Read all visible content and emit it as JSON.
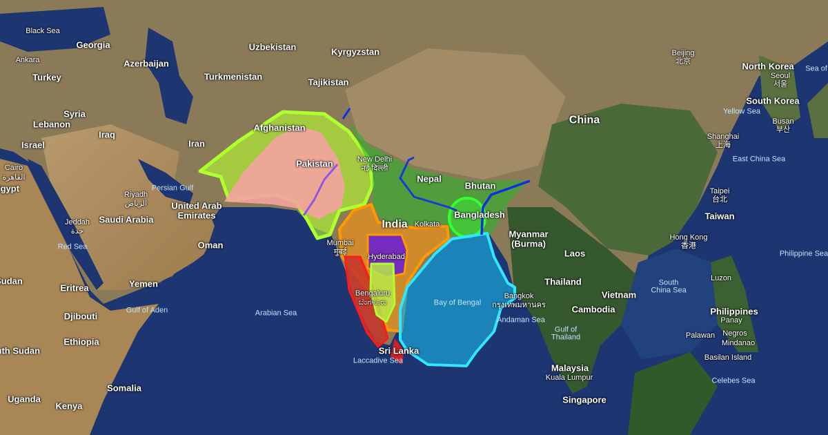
{
  "map": {
    "type": "satellite",
    "colors": {
      "ocean": "#1d3570",
      "region_afghanistan_pakistan": "#b5ff2e",
      "region_pakistan": "#f4a3a0",
      "region_north_india": "#2db32d",
      "region_bangladesh": "#33ff33",
      "region_deccan": "#e5901e",
      "region_hyderabad": "#6a1fd0",
      "region_karnataka": "#b8e84a",
      "region_west_coast": "#c8322a",
      "region_sri_lanka": "#e02020",
      "region_bay_of_bengal": "#1a9fd0",
      "bay_outline": "#33e6ff",
      "rivers": "#1030e0"
    }
  },
  "labels": {
    "black_sea": "Black Sea",
    "georgia": "Georgia",
    "ankara": "Ankara",
    "turkey": "Turkey",
    "azerbaijan": "Azerbaijan",
    "uzbekistan": "Uzbekistan",
    "kyrgyzstan": "Kyrgyzstan",
    "turkmenistan": "Turkmenistan",
    "tajikistan": "Tajikistan",
    "syria": "Syria",
    "lebanon": "Lebanon",
    "iraq": "Iraq",
    "israel": "Israel",
    "iran": "Iran",
    "cairo": "Cairo",
    "cairo_ar": "القاهرة",
    "egypt": "Egypt",
    "afghanistan": "Afghanistan",
    "pakistan": "Pakistan",
    "new_delhi": "New Delhi",
    "new_delhi_hi": "नई दिल्ली",
    "nepal": "Nepal",
    "bhutan": "Bhutan",
    "bangladesh": "Bangladesh",
    "kolkata": "Kolkata",
    "india": "India",
    "mumbai": "Mumbai",
    "mumbai_hi": "मुंबई",
    "hyderabad": "Hyderabad",
    "bengaluru": "Bengaluru",
    "bengaluru_kn": "ಬೆಂಗಳೂರು",
    "sri_lanka": "Sri Lanka",
    "laccadive_sea": "Laccadive Sea",
    "bay_of_bengal": "Bay of Bengal",
    "arabian_sea": "Arabian Sea",
    "riyadh": "Riyadh",
    "riyadh_ar": "الرياض",
    "persian_gulf": "Persian Gulf",
    "uae": "United Arab",
    "uae2": "Emirates",
    "saudi_arabia": "Saudi Arabia",
    "jeddah": "Jeddah",
    "jeddah_ar": "جدة",
    "red_sea": "Red Sea",
    "oman": "Oman",
    "yemen": "Yemen",
    "eritrea": "Eritrea",
    "sudan": "Sudan",
    "gulf_of_aden": "Gulf of Aden",
    "djibouti": "Djibouti",
    "ethiopia": "Ethiopia",
    "south_sudan": "South Sudan",
    "somalia": "Somalia",
    "uganda": "Uganda",
    "kenya": "Kenya",
    "china": "China",
    "beijing": "Beijing",
    "beijing_zh": "北京",
    "north_korea": "North Korea",
    "seoul": "Seoul",
    "seoul_ko": "서울",
    "south_korea": "South Korea",
    "sea_of": "Sea of",
    "yellow_sea": "Yellow Sea",
    "busan": "Busan",
    "busan_ko": "부산",
    "shanghai": "Shanghai",
    "shanghai_zh": "上海",
    "east_china_sea": "East China Sea",
    "taipei": "Taipei",
    "taipei_zh": "台北",
    "taiwan": "Taiwan",
    "myanmar": "Myanmar",
    "burma": "(Burma)",
    "hong_kong": "Hong Kong",
    "hong_kong_zh": "香港",
    "laos": "Laos",
    "philippine_sea": "Philippine Sea",
    "thailand": "Thailand",
    "south_china_sea": "South",
    "south_china_sea2": "China Sea",
    "luzon": "Luzon",
    "vietnam": "Vietnam",
    "cambodia": "Cambodia",
    "bangkok": "Bangkok",
    "bangkok_th": "กรุงเทพมหานคร",
    "andaman_sea": "Andaman Sea",
    "gulf_of_thailand": "Gulf of",
    "gulf_of_thailand2": "Thailand",
    "philippines": "Philippines",
    "panay": "Panay",
    "palawan": "Palawan",
    "negros": "Negros",
    "mindanao": "Mindanao",
    "basilan": "Basilan Island",
    "malaysia": "Malaysia",
    "kuala_lumpur": "Kuala Lumpur",
    "singapore": "Singapore",
    "celebes_sea": "Celebes Sea"
  }
}
